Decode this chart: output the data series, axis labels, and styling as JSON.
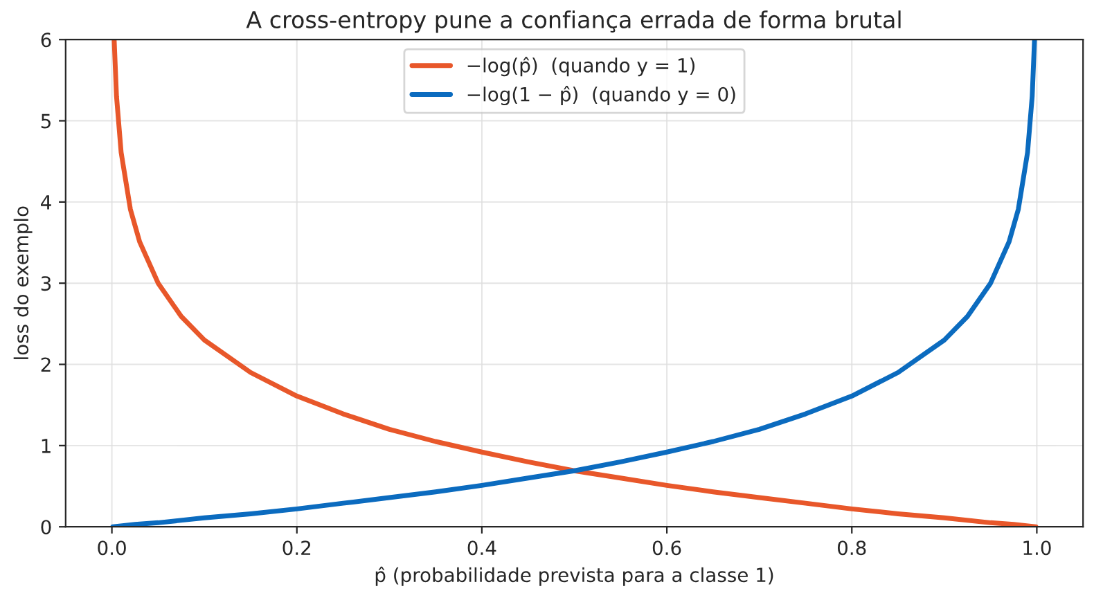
{
  "chart_data": {
    "type": "line",
    "title": "A cross-entropy pune a confiança errada de forma brutal",
    "xlabel": "p̂ (probabilidade prevista para a classe 1)",
    "ylabel": "loss do exemplo",
    "series": [
      {
        "name": "−log(p̂)  (quando y = 1)",
        "color": "#e8572a",
        "x": [
          0.0025,
          0.005,
          0.01,
          0.02,
          0.03,
          0.05,
          0.075,
          0.1,
          0.15,
          0.2,
          0.25,
          0.3,
          0.35,
          0.4,
          0.45,
          0.5,
          0.55,
          0.6,
          0.65,
          0.7,
          0.75,
          0.8,
          0.85,
          0.9,
          0.95,
          0.975,
          0.999
        ],
        "values": [
          5.99,
          5.3,
          4.61,
          3.91,
          3.51,
          3.0,
          2.59,
          2.3,
          1.9,
          1.61,
          1.39,
          1.2,
          1.05,
          0.92,
          0.8,
          0.69,
          0.6,
          0.51,
          0.43,
          0.36,
          0.29,
          0.22,
          0.16,
          0.11,
          0.05,
          0.03,
          0
        ]
      },
      {
        "name": "−log(1 − p̂)  (quando y = 0)",
        "color": "#0b6bbf",
        "x": [
          0.001,
          0.025,
          0.05,
          0.1,
          0.15,
          0.2,
          0.25,
          0.3,
          0.35,
          0.4,
          0.45,
          0.5,
          0.55,
          0.6,
          0.65,
          0.7,
          0.75,
          0.8,
          0.85,
          0.9,
          0.925,
          0.95,
          0.97,
          0.98,
          0.99,
          0.995,
          0.9975
        ],
        "values": [
          0,
          0.03,
          0.05,
          0.11,
          0.16,
          0.22,
          0.29,
          0.36,
          0.43,
          0.51,
          0.6,
          0.69,
          0.8,
          0.92,
          1.05,
          1.2,
          1.39,
          1.61,
          1.9,
          2.3,
          2.59,
          3.0,
          3.51,
          3.91,
          4.61,
          5.3,
          5.99
        ]
      }
    ],
    "xlim": [
      -0.05,
      1.05
    ],
    "ylim": [
      0,
      6
    ],
    "xticks": [
      {
        "value": 0,
        "label": "0.0"
      },
      0.2,
      0.4,
      0.6,
      0.8,
      {
        "value": 1,
        "label": "1.0"
      }
    ],
    "yticks": [
      0,
      1,
      2,
      3,
      4,
      5,
      6
    ],
    "grid": true,
    "legend": "top",
    "marker": "none",
    "line_style": "solid"
  }
}
